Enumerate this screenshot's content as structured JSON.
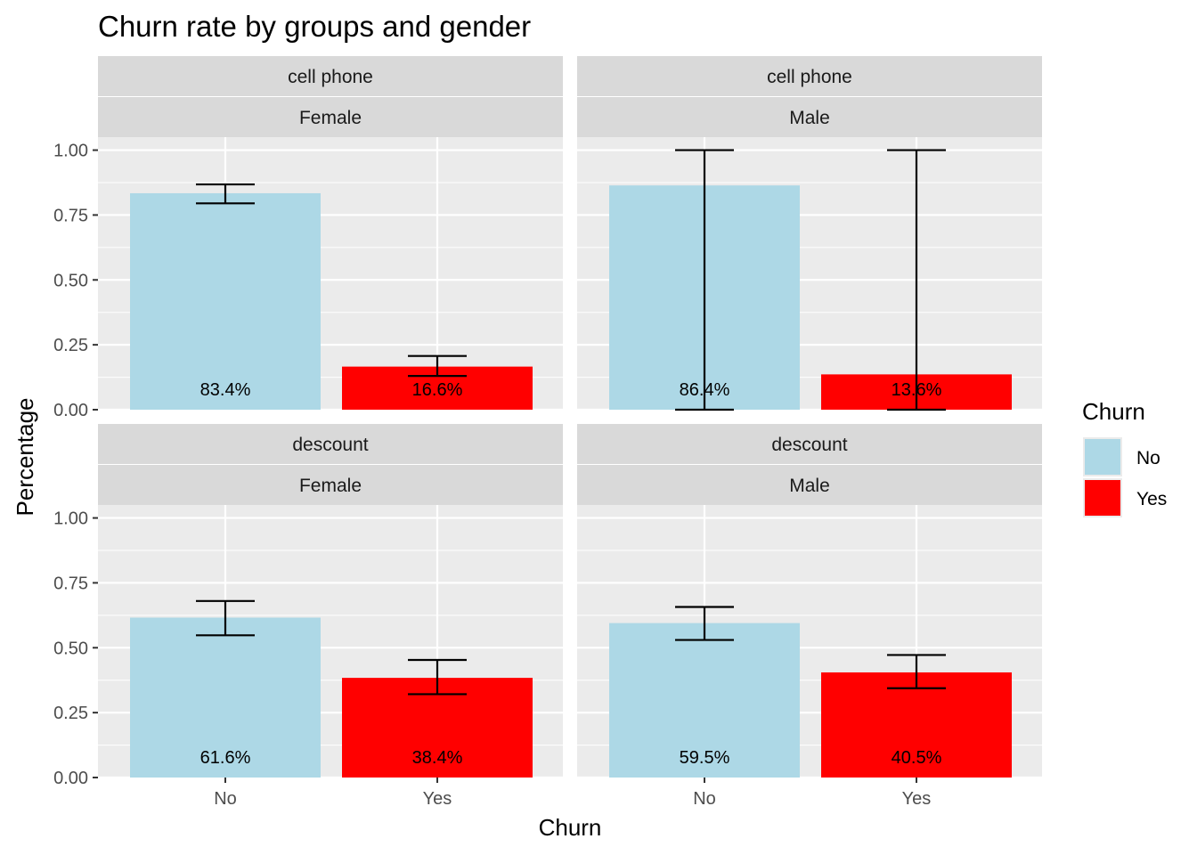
{
  "chart_data": {
    "type": "bar",
    "title": "Churn rate by groups and gender",
    "xlabel": "Churn",
    "ylabel": "Percentage",
    "categories": [
      "No",
      "Yes"
    ],
    "ylim": [
      0,
      1.05
    ],
    "yticks": [
      "0.00",
      "0.25",
      "0.50",
      "0.75",
      "1.00"
    ],
    "grid": true,
    "legend": {
      "title": "Churn",
      "position": "right",
      "items": [
        {
          "label": "No",
          "color": "#add8e6"
        },
        {
          "label": "Yes",
          "color": "#ff0000"
        }
      ]
    },
    "panels": [
      {
        "group": "cell phone",
        "gender": "Female",
        "values": [
          0.834,
          0.166
        ],
        "labels": [
          "83.4%",
          "16.6%"
        ],
        "error_low": [
          0.795,
          0.13
        ],
        "error_high": [
          0.868,
          0.207
        ]
      },
      {
        "group": "cell phone",
        "gender": "Male",
        "values": [
          0.864,
          0.136
        ],
        "labels": [
          "86.4%",
          "13.6%"
        ],
        "error_low": [
          0.0,
          0.0
        ],
        "error_high": [
          1.0,
          1.0
        ]
      },
      {
        "group": "descount",
        "gender": "Female",
        "values": [
          0.616,
          0.384
        ],
        "labels": [
          "61.6%",
          "38.4%"
        ],
        "error_low": [
          0.548,
          0.321
        ],
        "error_high": [
          0.68,
          0.453
        ]
      },
      {
        "group": "descount",
        "gender": "Male",
        "values": [
          0.595,
          0.405
        ],
        "labels": [
          "59.5%",
          "40.5%"
        ],
        "error_low": [
          0.53,
          0.344
        ],
        "error_high": [
          0.657,
          0.472
        ]
      }
    ]
  }
}
